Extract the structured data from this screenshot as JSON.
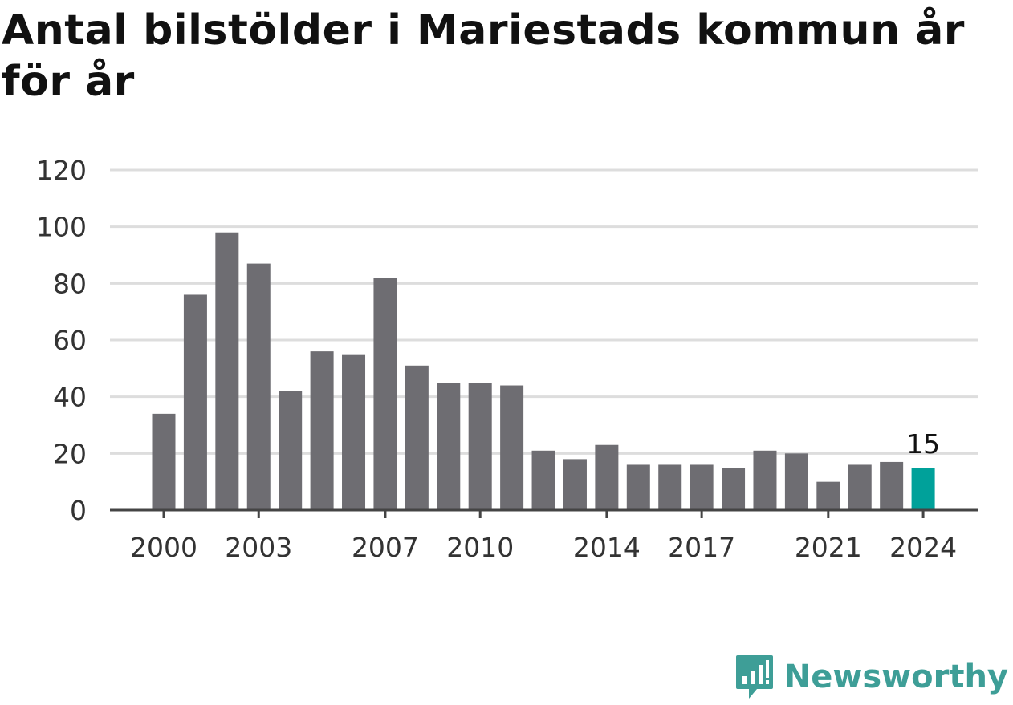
{
  "title": "Antal bilstölder i Mariestads kommun år för år",
  "brand": {
    "name": "Newsworthy",
    "icon": "newsworthy-logo-icon"
  },
  "colors": {
    "bar": "#6e6d72",
    "highlight": "#00a19a",
    "grid": "#dddddd",
    "axis": "#444444",
    "brand": "#3e9e97"
  },
  "chart_data": {
    "type": "bar",
    "title": "Antal bilstölder i Mariestads kommun år för år",
    "xlabel": "",
    "ylabel": "",
    "categories": [
      "2000",
      "2001",
      "2002",
      "2003",
      "2004",
      "2005",
      "2006",
      "2007",
      "2008",
      "2009",
      "2010",
      "2011",
      "2012",
      "2013",
      "2014",
      "2015",
      "2016",
      "2017",
      "2018",
      "2019",
      "2020",
      "2021",
      "2022",
      "2023",
      "2024"
    ],
    "values": [
      34,
      76,
      98,
      87,
      42,
      56,
      55,
      82,
      51,
      45,
      45,
      44,
      21,
      18,
      23,
      16,
      16,
      16,
      15,
      21,
      20,
      10,
      16,
      17,
      15
    ],
    "x_tick_labels": [
      "2000",
      "2003",
      "2007",
      "2010",
      "2014",
      "2017",
      "2021",
      "2024"
    ],
    "y_ticks": [
      0,
      20,
      40,
      60,
      80,
      100,
      120
    ],
    "ylim": [
      0,
      120
    ],
    "grid": true,
    "legend": "none",
    "highlight": {
      "category": "2024",
      "label": "15"
    }
  }
}
